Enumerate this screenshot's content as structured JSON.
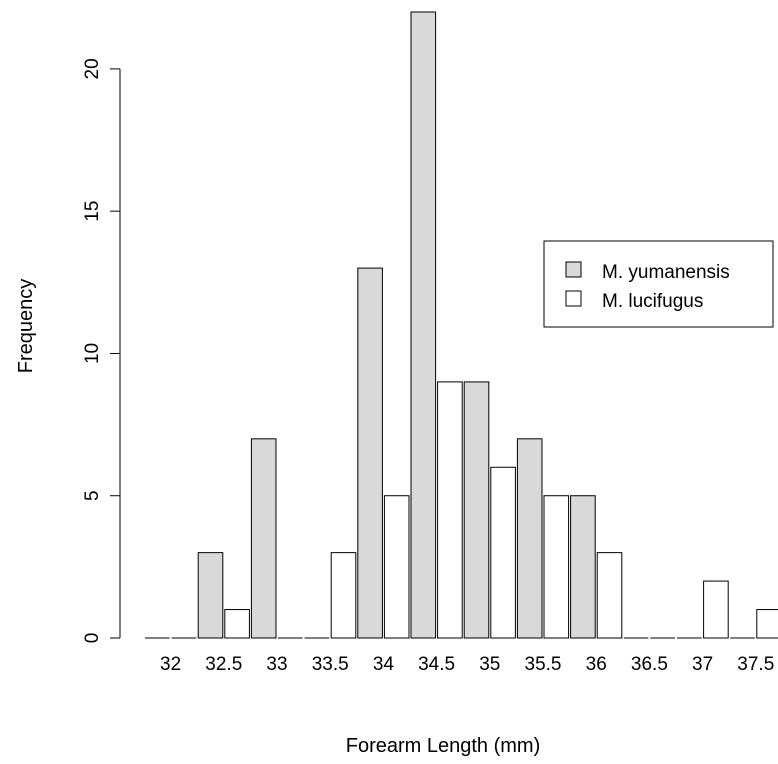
{
  "chart_data": {
    "type": "bar",
    "xlabel": "Forearm Length (mm)",
    "ylabel": "Frequency",
    "categories": [
      "32",
      "32.5",
      "33",
      "33.5",
      "34",
      "34.5",
      "35",
      "35.5",
      "36",
      "36.5",
      "37",
      "37.5"
    ],
    "series": [
      {
        "name": "M. yumanensis",
        "color": "#d9d9d9",
        "values": [
          0,
          3,
          7,
          0,
          13,
          22,
          9,
          7,
          5,
          0,
          0,
          0
        ]
      },
      {
        "name": "M. lucifugus",
        "color": "#ffffff",
        "values": [
          0,
          1,
          0,
          3,
          5,
          9,
          6,
          5,
          3,
          0,
          2,
          1
        ]
      }
    ],
    "yticks": [
      0,
      5,
      10,
      15,
      20
    ],
    "ylim": [
      0,
      22
    ],
    "grid": false,
    "legend_position": "right"
  }
}
